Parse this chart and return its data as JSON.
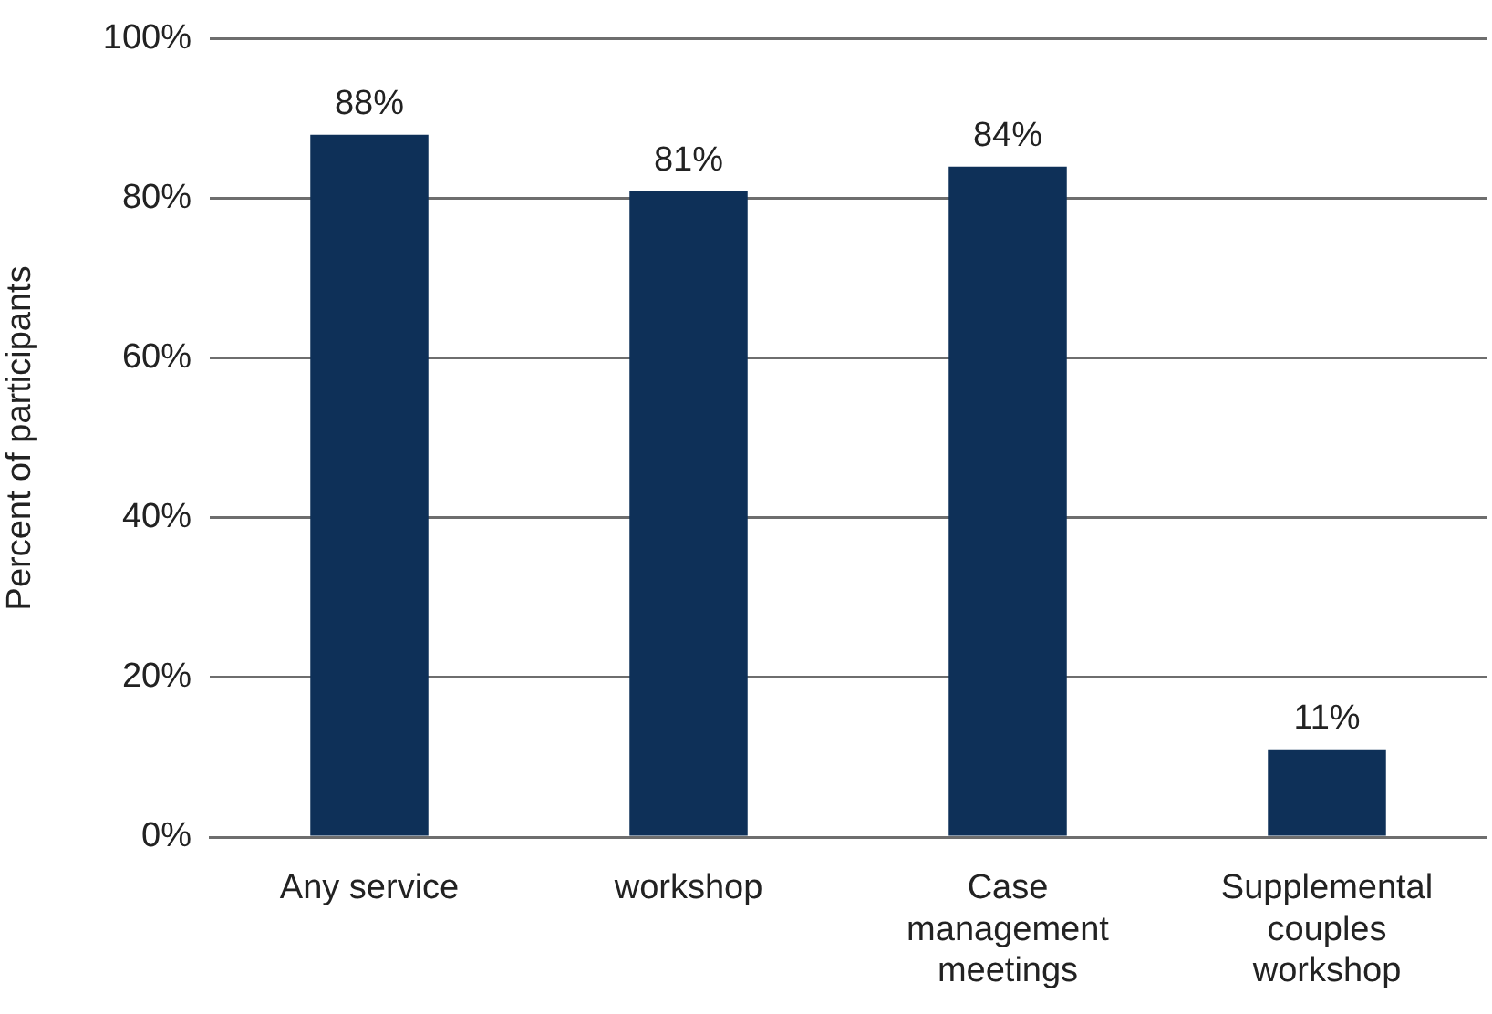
{
  "chart_data": {
    "type": "bar",
    "ylabel": "Percent of participants",
    "categories": [
      "Any service",
      "workshop",
      "Case management meetings",
      "Supplemental couples workshop"
    ],
    "values": [
      88,
      81,
      84,
      11
    ],
    "color": "#0e3058",
    "value_labels": [
      "88%",
      "81%",
      "84%",
      "11%"
    ],
    "ylim": [
      0,
      100
    ],
    "yticks": [
      {
        "value": 0,
        "label": "0%"
      },
      {
        "value": 20,
        "label": "20%"
      },
      {
        "value": 40,
        "label": "40%"
      },
      {
        "value": 60,
        "label": "60%"
      },
      {
        "value": 80,
        "label": "80%"
      },
      {
        "value": 100,
        "label": "100%"
      }
    ],
    "grid": "y"
  }
}
